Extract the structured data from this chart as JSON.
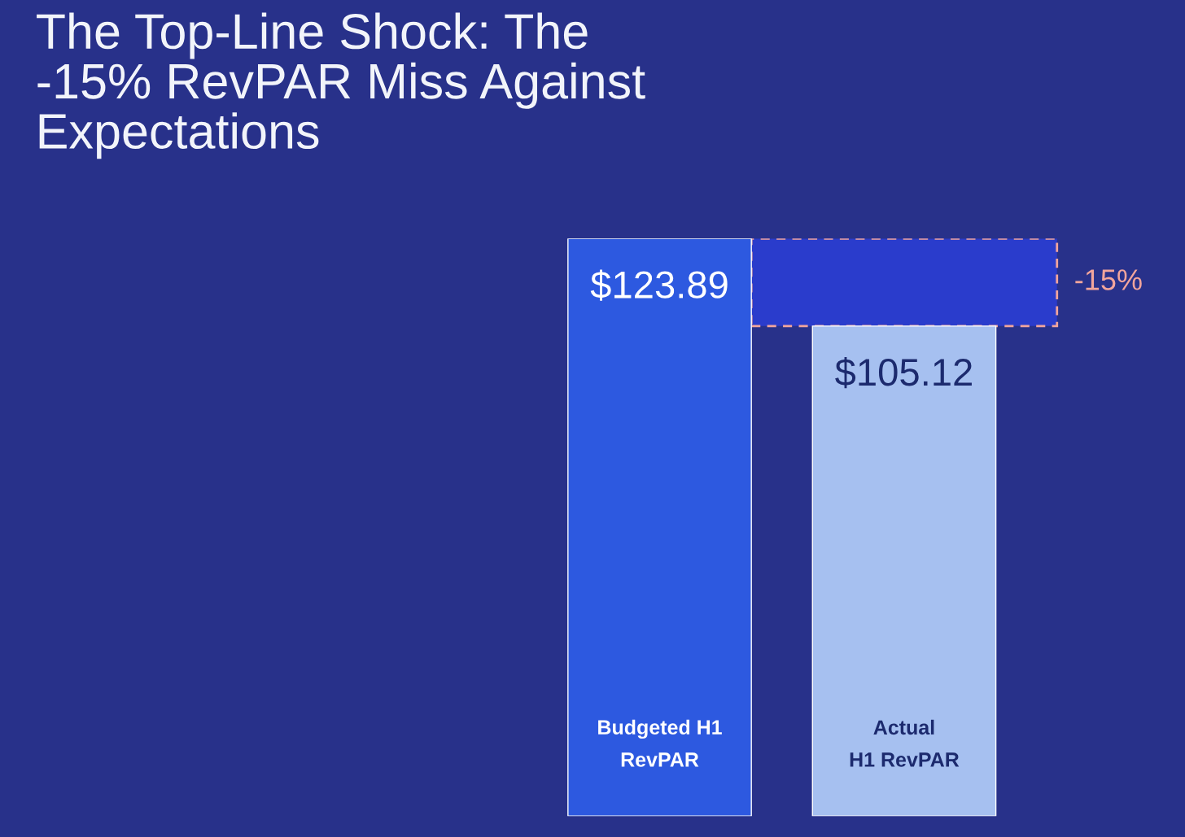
{
  "chart_data": {
    "type": "bar",
    "title": "The Top-Line Shock: The -15% RevPAR Miss Against Expectations",
    "categories": [
      "Budgeted H1\nRevPAR",
      "Actual\nH1 RevPAR"
    ],
    "values": [
      123.89,
      105.12
    ],
    "colors": [
      "#2d59e0",
      "#a6c0f0"
    ],
    "value_labels": [
      "$123.89",
      "$105.12"
    ],
    "bands": [
      {
        "axis": "y",
        "from": 105.12,
        "to": 123.89,
        "label": "-15%",
        "color": "#2a3ccc"
      }
    ]
  }
}
